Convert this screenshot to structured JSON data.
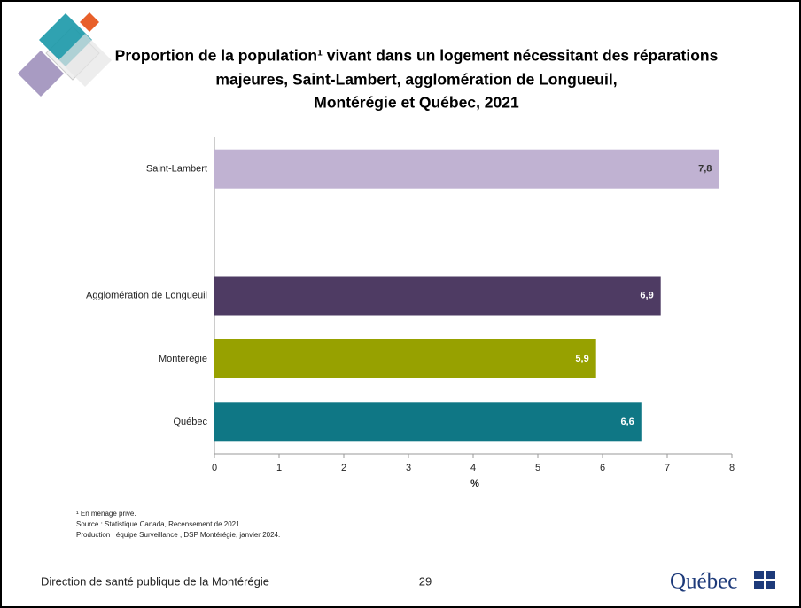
{
  "chart_data": {
    "type": "hbar",
    "title": [
      "Proportion de la population¹ vivant dans un logement nécessitant des réparations",
      "majeures, Saint-Lambert, agglomération de Longueuil,",
      "Montérégie et Québec, 2021"
    ],
    "categories": [
      "Saint-Lambert",
      null,
      "Agglomération de Longueuil",
      "Montérégie",
      "Québec"
    ],
    "values": [
      7.8,
      null,
      6.9,
      5.9,
      6.6
    ],
    "value_labels": [
      "7,8",
      null,
      "6,9",
      "5,9",
      "6,6"
    ],
    "colors": [
      "#c0b2d2",
      null,
      "#4e3b63",
      "#97a100",
      "#0f7785"
    ],
    "xlim": [
      0,
      8
    ],
    "xticks": [
      0,
      1,
      2,
      3,
      4,
      5,
      6,
      7,
      8
    ],
    "xlabel": "%",
    "notes": [
      "¹ En ménage privé.",
      "Source : Statistique Canada, Recensement de 2021.",
      "Production : équipe Surveillance , DSP Montérégie, janvier 2024."
    ]
  },
  "footer": {
    "organization": "Direction de santé publique de la Montérégie",
    "page_number": 29,
    "logo": "Québec"
  }
}
